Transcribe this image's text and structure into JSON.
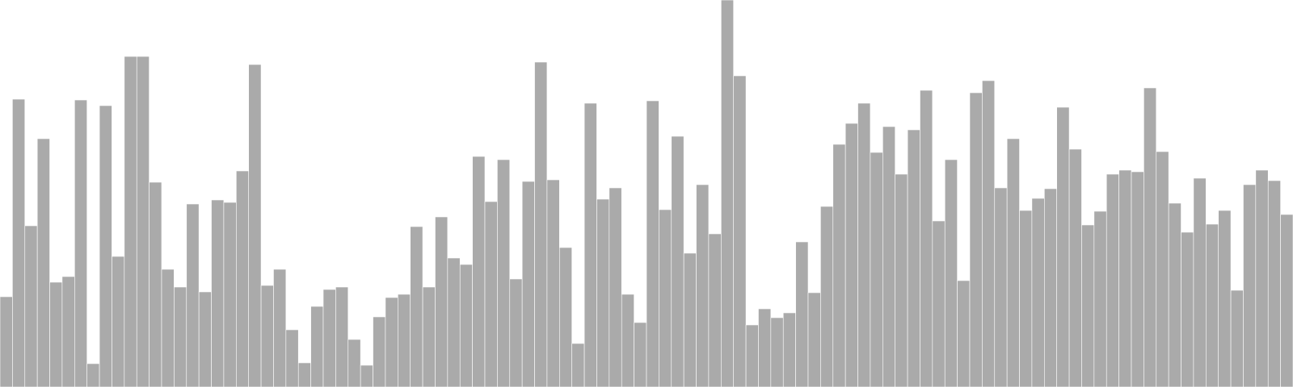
{
  "chart_data": {
    "type": "bar",
    "title": "",
    "xlabel": "",
    "ylabel": "",
    "ylim": [
      0,
      480
    ],
    "grid": false,
    "legend": "none",
    "bar_color": "#aaaaaa",
    "bar_edge_color": "#ffffff",
    "values": [
      112,
      357,
      200,
      308,
      130,
      137,
      356,
      29,
      349,
      162,
      410,
      410,
      254,
      146,
      124,
      227,
      118,
      232,
      229,
      268,
      400,
      126,
      146,
      71,
      30,
      100,
      121,
      124,
      59,
      27,
      87,
      111,
      115,
      199,
      124,
      211,
      160,
      152,
      286,
      230,
      282,
      134,
      255,
      403,
      257,
      173,
      54,
      352,
      233,
      247,
      115,
      80,
      355,
      220,
      311,
      166,
      251,
      190,
      480,
      386,
      77,
      97,
      86,
      92,
      180,
      117,
      224,
      301,
      327,
      352,
      291,
      323,
      264,
      319,
      368,
      206,
      282,
      132,
      365,
      380,
      247,
      308,
      219,
      234,
      246,
      347,
      295,
      201,
      218,
      264,
      269,
      267,
      371,
      292,
      228,
      192,
      259,
      202,
      219,
      120,
      251,
      269,
      256,
      214
    ]
  }
}
